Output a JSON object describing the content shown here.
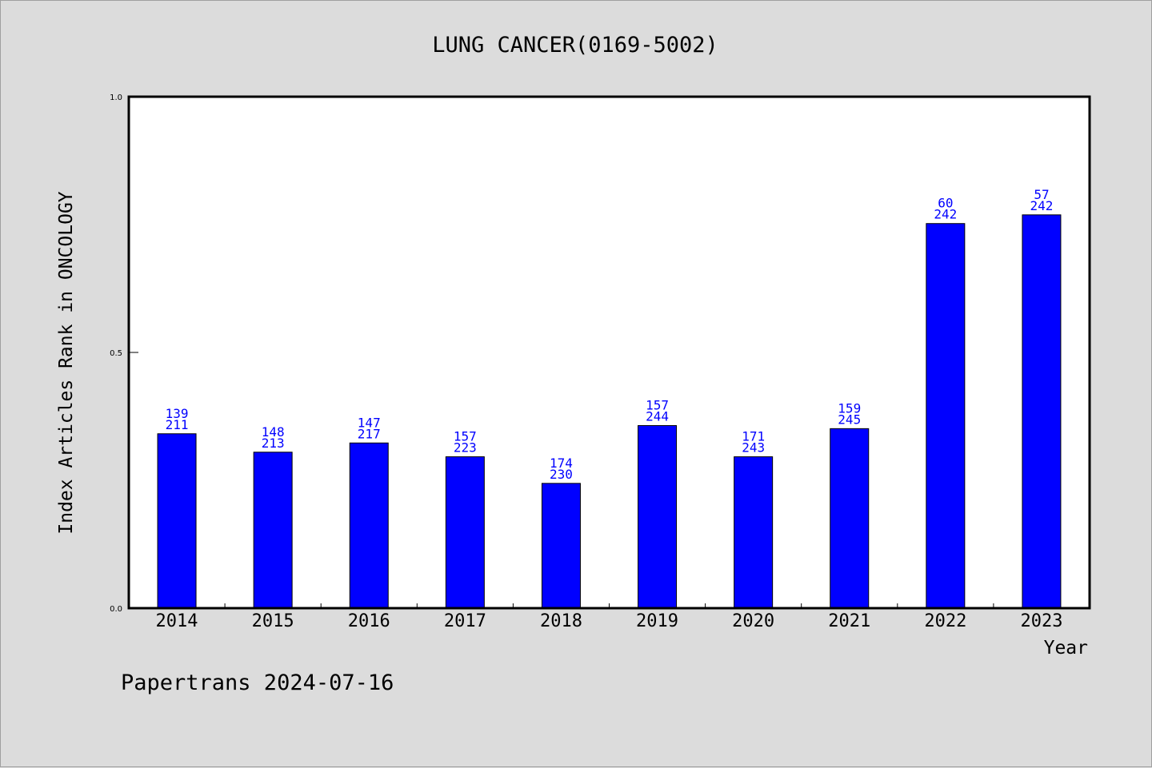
{
  "chart_data": {
    "type": "bar",
    "title": "LUNG CANCER(0169-5002)",
    "xlabel": "Year",
    "ylabel": "Index Articles Rank in ONCOLOGY",
    "ylim": [
      0.0,
      1.0
    ],
    "yticks": [
      "0.0",
      "0.5",
      "1.0"
    ],
    "categories": [
      "2014",
      "2015",
      "2016",
      "2017",
      "2018",
      "2019",
      "2020",
      "2021",
      "2022",
      "2023"
    ],
    "values": [
      0.341,
      0.305,
      0.323,
      0.296,
      0.244,
      0.357,
      0.296,
      0.351,
      0.752,
      0.769
    ],
    "labels_top": [
      "139",
      "148",
      "147",
      "157",
      "174",
      "157",
      "171",
      "159",
      "60",
      "57"
    ],
    "labels_bottom": [
      "211",
      "213",
      "217",
      "223",
      "230",
      "244",
      "243",
      "245",
      "242",
      "242"
    ],
    "bar_color": "#0000ff",
    "label_color": "#0000ff",
    "grid": false
  },
  "footer": {
    "text": "Papertrans 2024-07-16"
  },
  "colors": {
    "background": "#dcdcdc",
    "plot_background": "#ffffff",
    "axis": "#000000"
  }
}
